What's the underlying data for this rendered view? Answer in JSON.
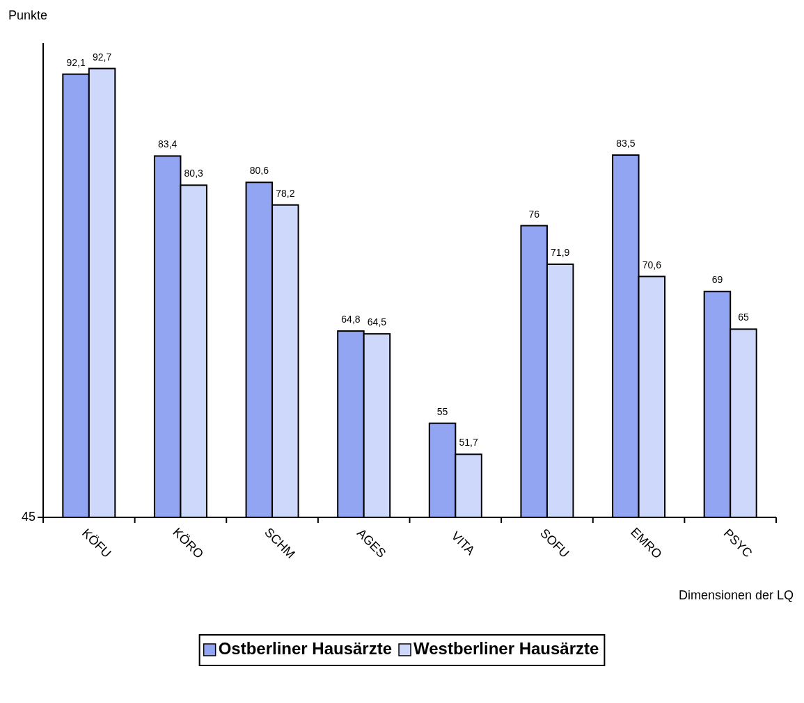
{
  "chart_data": {
    "type": "bar",
    "ylabel": "Punkte",
    "xlabel": "Dimensionen der LQ",
    "categories": [
      "KÖFU",
      "KÖRO",
      "SCHM",
      "AGES",
      "VITA",
      "SOFU",
      "EMRO",
      "PSYC"
    ],
    "series": [
      {
        "name": "Ostberliner Hausärzte",
        "color": "#91a5f2",
        "values": [
          92.1,
          83.4,
          80.6,
          64.8,
          55,
          76,
          83.5,
          69
        ],
        "value_labels": [
          "92,1",
          "83,4",
          "80,6",
          "64,8",
          "55",
          "76",
          "83,5",
          "69"
        ]
      },
      {
        "name": "Westberliner Hausärzte",
        "color": "#cdd8fa",
        "values": [
          92.7,
          80.3,
          78.2,
          64.5,
          51.7,
          71.9,
          70.6,
          65
        ],
        "value_labels": [
          "92,7",
          "80,3",
          "78,2",
          "64,5",
          "51,7",
          "71,9",
          "70,6",
          "65"
        ]
      }
    ],
    "ylim": [
      45,
      95.4
    ],
    "annotations": [
      "45"
    ],
    "legend": "bottom"
  }
}
